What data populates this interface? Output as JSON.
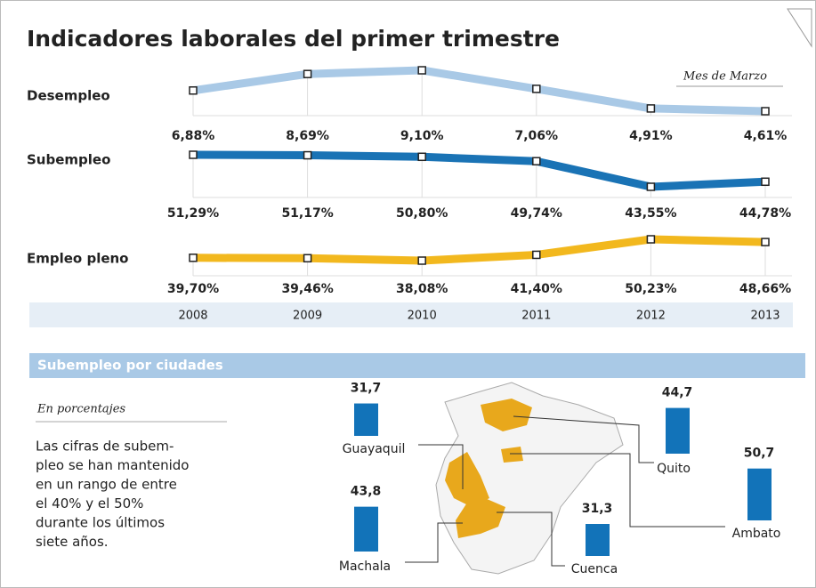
{
  "title": "Indicadores laborales del primer trimestre",
  "chart_data": [
    {
      "type": "line",
      "subtitle": "Mes de Marzo",
      "categories": [
        "2008",
        "2009",
        "2010",
        "2011",
        "2012",
        "2013"
      ],
      "series": [
        {
          "name": "Desempleo",
          "color": "#a9c9e6",
          "values": [
            6.88,
            8.69,
            9.1,
            7.06,
            4.91,
            4.61
          ],
          "value_labels": [
            "6,88%",
            "8,69%",
            "9,10%",
            "7,06%",
            "4,91%",
            "4,61%"
          ]
        },
        {
          "name": "Subempleo",
          "color": "#1a73b5",
          "values": [
            51.29,
            51.17,
            50.8,
            49.74,
            43.55,
            44.78
          ],
          "value_labels": [
            "51,29%",
            "51,17%",
            "50,80%",
            "49,74%",
            "43,55%",
            "44,78%"
          ]
        },
        {
          "name": "Empleo pleno",
          "color": "#f2b81e",
          "values": [
            39.7,
            39.46,
            38.08,
            41.4,
            50.23,
            48.66
          ],
          "value_labels": [
            "39,70%",
            "39,46%",
            "38,08%",
            "41,40%",
            "50,23%",
            "48,66%"
          ]
        }
      ]
    },
    {
      "type": "bar",
      "title": "Subempleo por ciudades",
      "subtitle": "En porcentajes",
      "color": "#1273b9",
      "categories": [
        "Guayaquil",
        "Quito",
        "Ambato",
        "Machala",
        "Cuenca"
      ],
      "values": [
        31.7,
        44.7,
        50.7,
        43.8,
        31.3
      ],
      "value_labels": [
        "31,7",
        "44,7",
        "50,7",
        "43,8",
        "31,3"
      ],
      "note": [
        "Las cifras de subem-",
        "pleo se han mantenido",
        "en un rango de entre",
        "el 40% y el 50%",
        "durante los últimos",
        "siete años."
      ]
    }
  ]
}
